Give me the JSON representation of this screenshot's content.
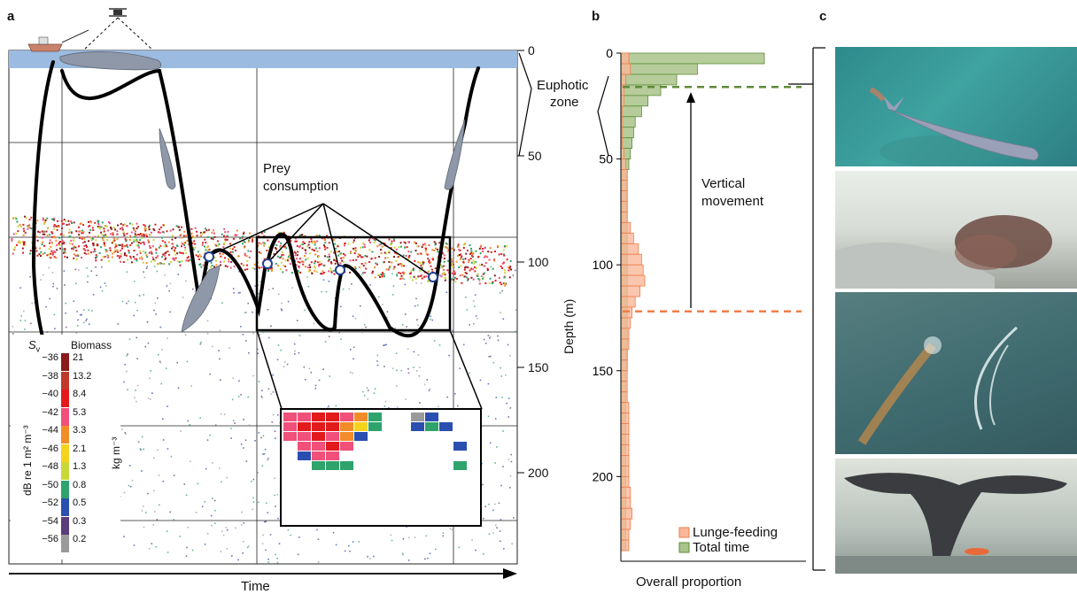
{
  "panel_labels": {
    "a": "a",
    "b": "b",
    "c": "c"
  },
  "panel_a": {
    "x_axis_label": "Time",
    "depth_ticks": [
      "0",
      "50",
      "100",
      "150",
      "200"
    ],
    "euphotic_label": [
      "Euphotic",
      "zone"
    ],
    "prey_label": [
      "Prey",
      "consumption"
    ],
    "legend": {
      "sv_symbol": "S",
      "sv_subscript": "v",
      "biomass_title": "Biomass",
      "sv_values": [
        "−36",
        "−38",
        "−40",
        "−42",
        "−44",
        "−46",
        "−48",
        "−50",
        "−52",
        "−54",
        "−56"
      ],
      "biomass_values": [
        "21",
        "13.2",
        "8.4",
        "5.3",
        "3.3",
        "2.1",
        "1.3",
        "0.8",
        "0.5",
        "0.3",
        "0.2"
      ],
      "sv_unit": "dB re 1 m² m⁻³",
      "biomass_unit": "kg m⁻³",
      "colors": [
        "#8b1a1a",
        "#c0392b",
        "#e31a1c",
        "#f0507a",
        "#f28c28",
        "#f5d21e",
        "#c8d83a",
        "#2ea36b",
        "#2b4fb0",
        "#5a3d7a",
        "#9a9a9a"
      ]
    },
    "colors": {
      "surface": "#9bbbe0",
      "prey": "#d62728"
    }
  },
  "panel_b": {
    "y_axis_label": "Depth (m)",
    "x_axis_label": "Overall proportion",
    "y_ticks": [
      "0",
      "50",
      "100",
      "150",
      "200"
    ],
    "annotation": [
      "Vertical",
      "movement"
    ],
    "legend": {
      "lunge": "Lunge-feeding",
      "total": "Total time"
    },
    "colors": {
      "lunge_fill": "#f9b89a",
      "lunge_edge": "#f07d4a",
      "total_fill": "#a9c48a",
      "total_edge": "#5f8a3a"
    }
  },
  "chart_data": {
    "type": "bar",
    "orientation": "horizontal",
    "ylabel": "Depth (m)",
    "xlabel": "Overall proportion",
    "ylim": [
      0,
      240
    ],
    "series": [
      {
        "name": "Total time",
        "bin_size_m": 5,
        "depth_bins": [
          5,
          10,
          15,
          20,
          25,
          30,
          35,
          40,
          45,
          50,
          55,
          60,
          65,
          70,
          75,
          80,
          85,
          90,
          95,
          100,
          105,
          110,
          115,
          120,
          125,
          130,
          135,
          140,
          145,
          150,
          155,
          160,
          165,
          170,
          175,
          180,
          185,
          190,
          195,
          200,
          205,
          210,
          215,
          220,
          225,
          230,
          235
        ],
        "values": [
          0.9,
          0.48,
          0.35,
          0.25,
          0.17,
          0.13,
          0.09,
          0.08,
          0.07,
          0.06,
          0.05,
          0.04,
          0.04,
          0.04,
          0.04,
          0.04,
          0.04,
          0.04,
          0.04,
          0.04,
          0.04,
          0.04,
          0.04,
          0.04,
          0.04,
          0.04,
          0.04,
          0.04,
          0.04,
          0.04,
          0.03,
          0.03,
          0.03,
          0.03,
          0.03,
          0.03,
          0.03,
          0.03,
          0.03,
          0.03,
          0.03,
          0.03,
          0.03,
          0.03,
          0.03,
          0.03,
          0.03
        ]
      },
      {
        "name": "Lunge-feeding",
        "bin_size_m": 5,
        "depth_bins": [
          5,
          10,
          15,
          20,
          25,
          30,
          35,
          40,
          45,
          50,
          55,
          60,
          65,
          70,
          75,
          80,
          85,
          90,
          95,
          100,
          105,
          110,
          115,
          120,
          125,
          130,
          135,
          140,
          145,
          150,
          155,
          160,
          165,
          170,
          175,
          180,
          185,
          190,
          195,
          200,
          205,
          210,
          215,
          220,
          225,
          230,
          235
        ],
        "values": [
          0.05,
          0.06,
          0.03,
          0.02,
          0.02,
          0.01,
          0.01,
          0.01,
          0.01,
          0.02,
          0.03,
          0.04,
          0.04,
          0.04,
          0.04,
          0.04,
          0.06,
          0.08,
          0.11,
          0.13,
          0.14,
          0.15,
          0.12,
          0.09,
          0.07,
          0.06,
          0.05,
          0.05,
          0.04,
          0.04,
          0.04,
          0.04,
          0.04,
          0.05,
          0.05,
          0.05,
          0.05,
          0.05,
          0.05,
          0.05,
          0.05,
          0.06,
          0.06,
          0.07,
          0.06,
          0.05,
          0.05
        ]
      }
    ],
    "reference_lines": [
      {
        "series": "Total time",
        "depth": 16
      },
      {
        "series": "Lunge-feeding",
        "depth": 122
      }
    ]
  }
}
